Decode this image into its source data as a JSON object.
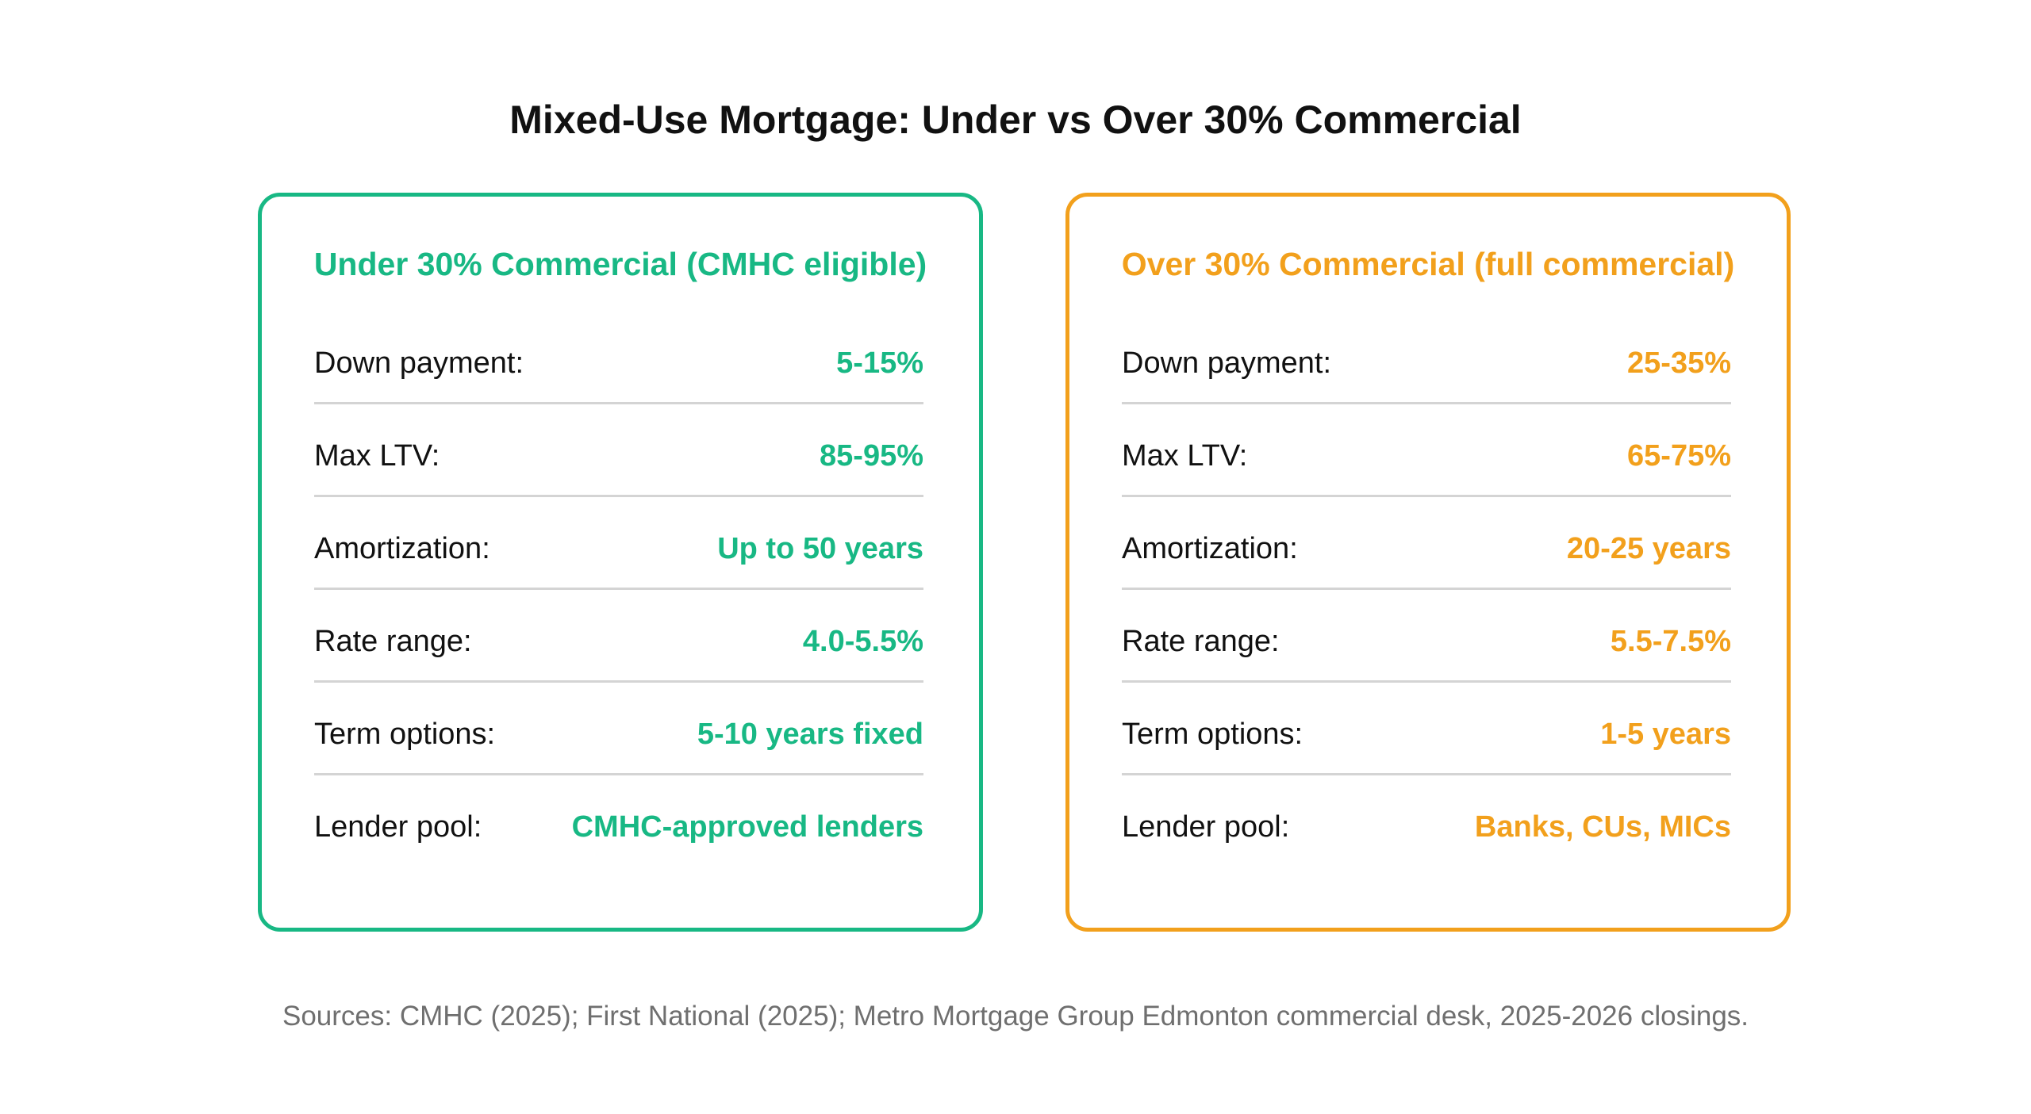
{
  "title": "Mixed-Use Mortgage: Under vs Over 30% Commercial",
  "colors": {
    "accent_green": "#18b884",
    "accent_orange": "#f2a01c",
    "divider": "#d4d4d4",
    "footnote": "#6f6f6f"
  },
  "cards": [
    {
      "heading": "Under 30% Commercial (CMHC eligible)",
      "rows": [
        {
          "label": "Down payment:",
          "value": "5-15%"
        },
        {
          "label": "Max LTV:",
          "value": "85-95%"
        },
        {
          "label": "Amortization:",
          "value": "Up to 50 years"
        },
        {
          "label": "Rate range:",
          "value": "4.0-5.5%"
        },
        {
          "label": "Term options:",
          "value": "5-10 years fixed"
        },
        {
          "label": "Lender pool:",
          "value": "CMHC-approved lenders"
        }
      ]
    },
    {
      "heading": "Over 30% Commercial (full commercial)",
      "rows": [
        {
          "label": "Down payment:",
          "value": "25-35%"
        },
        {
          "label": "Max LTV:",
          "value": "65-75%"
        },
        {
          "label": "Amortization:",
          "value": "20-25 years"
        },
        {
          "label": "Rate range:",
          "value": "5.5-7.5%"
        },
        {
          "label": "Term options:",
          "value": "1-5 years"
        },
        {
          "label": "Lender pool:",
          "value": "Banks, CUs, MICs"
        }
      ]
    }
  ],
  "sources": "Sources: CMHC (2025); First National (2025); Metro Mortgage Group Edmonton commercial desk, 2025-2026 closings."
}
